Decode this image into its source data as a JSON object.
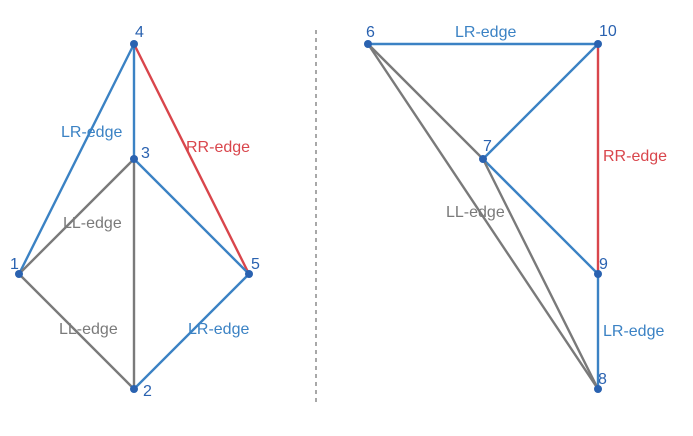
{
  "colors": {
    "blue": "#3b82c4",
    "red": "#d9464c",
    "gray": "#7a7a7a",
    "node": "#2a62b0",
    "divider": "#8c8c8c"
  },
  "graphs": [
    {
      "id": "left",
      "vertices": [
        {
          "id": "v1",
          "label": "1"
        },
        {
          "id": "v2",
          "label": "2"
        },
        {
          "id": "v3",
          "label": "3"
        },
        {
          "id": "v4",
          "label": "4"
        },
        {
          "id": "v5",
          "label": "5"
        }
      ],
      "edges": [
        {
          "from": "4",
          "to": "1",
          "type": "LR"
        },
        {
          "from": "4",
          "to": "3",
          "type": "LR"
        },
        {
          "from": "4",
          "to": "5",
          "type": "RR"
        },
        {
          "from": "3",
          "to": "5",
          "type": "LR"
        },
        {
          "from": "5",
          "to": "2",
          "type": "LR"
        },
        {
          "from": "1",
          "to": "3",
          "type": "LL"
        },
        {
          "from": "1",
          "to": "2",
          "type": "LL"
        },
        {
          "from": "3",
          "to": "2",
          "type": "LL"
        }
      ],
      "edge_labels": {
        "lr_upper": "LR-edge",
        "rr": "RR-edge",
        "ll_middle": "LL-edge",
        "ll_lower": "LL-edge",
        "lr_lower": "LR-edge"
      }
    },
    {
      "id": "right",
      "vertices": [
        {
          "id": "v6",
          "label": "6"
        },
        {
          "id": "v7",
          "label": "7"
        },
        {
          "id": "v8",
          "label": "8"
        },
        {
          "id": "v9",
          "label": "9"
        },
        {
          "id": "v10",
          "label": "10"
        }
      ],
      "edges": [
        {
          "from": "6",
          "to": "10",
          "type": "LR"
        },
        {
          "from": "10",
          "to": "7",
          "type": "LR"
        },
        {
          "from": "7",
          "to": "9",
          "type": "LR"
        },
        {
          "from": "10",
          "to": "9",
          "type": "RR"
        },
        {
          "from": "9",
          "to": "8",
          "type": "LR"
        },
        {
          "from": "6",
          "to": "7",
          "type": "LL"
        },
        {
          "from": "6",
          "to": "8",
          "type": "LL"
        },
        {
          "from": "7",
          "to": "8",
          "type": "LL"
        }
      ],
      "edge_labels": {
        "lr_top": "LR-edge",
        "rr": "RR-edge",
        "ll": "LL-edge",
        "lr_bottom": "LR-edge"
      }
    }
  ]
}
